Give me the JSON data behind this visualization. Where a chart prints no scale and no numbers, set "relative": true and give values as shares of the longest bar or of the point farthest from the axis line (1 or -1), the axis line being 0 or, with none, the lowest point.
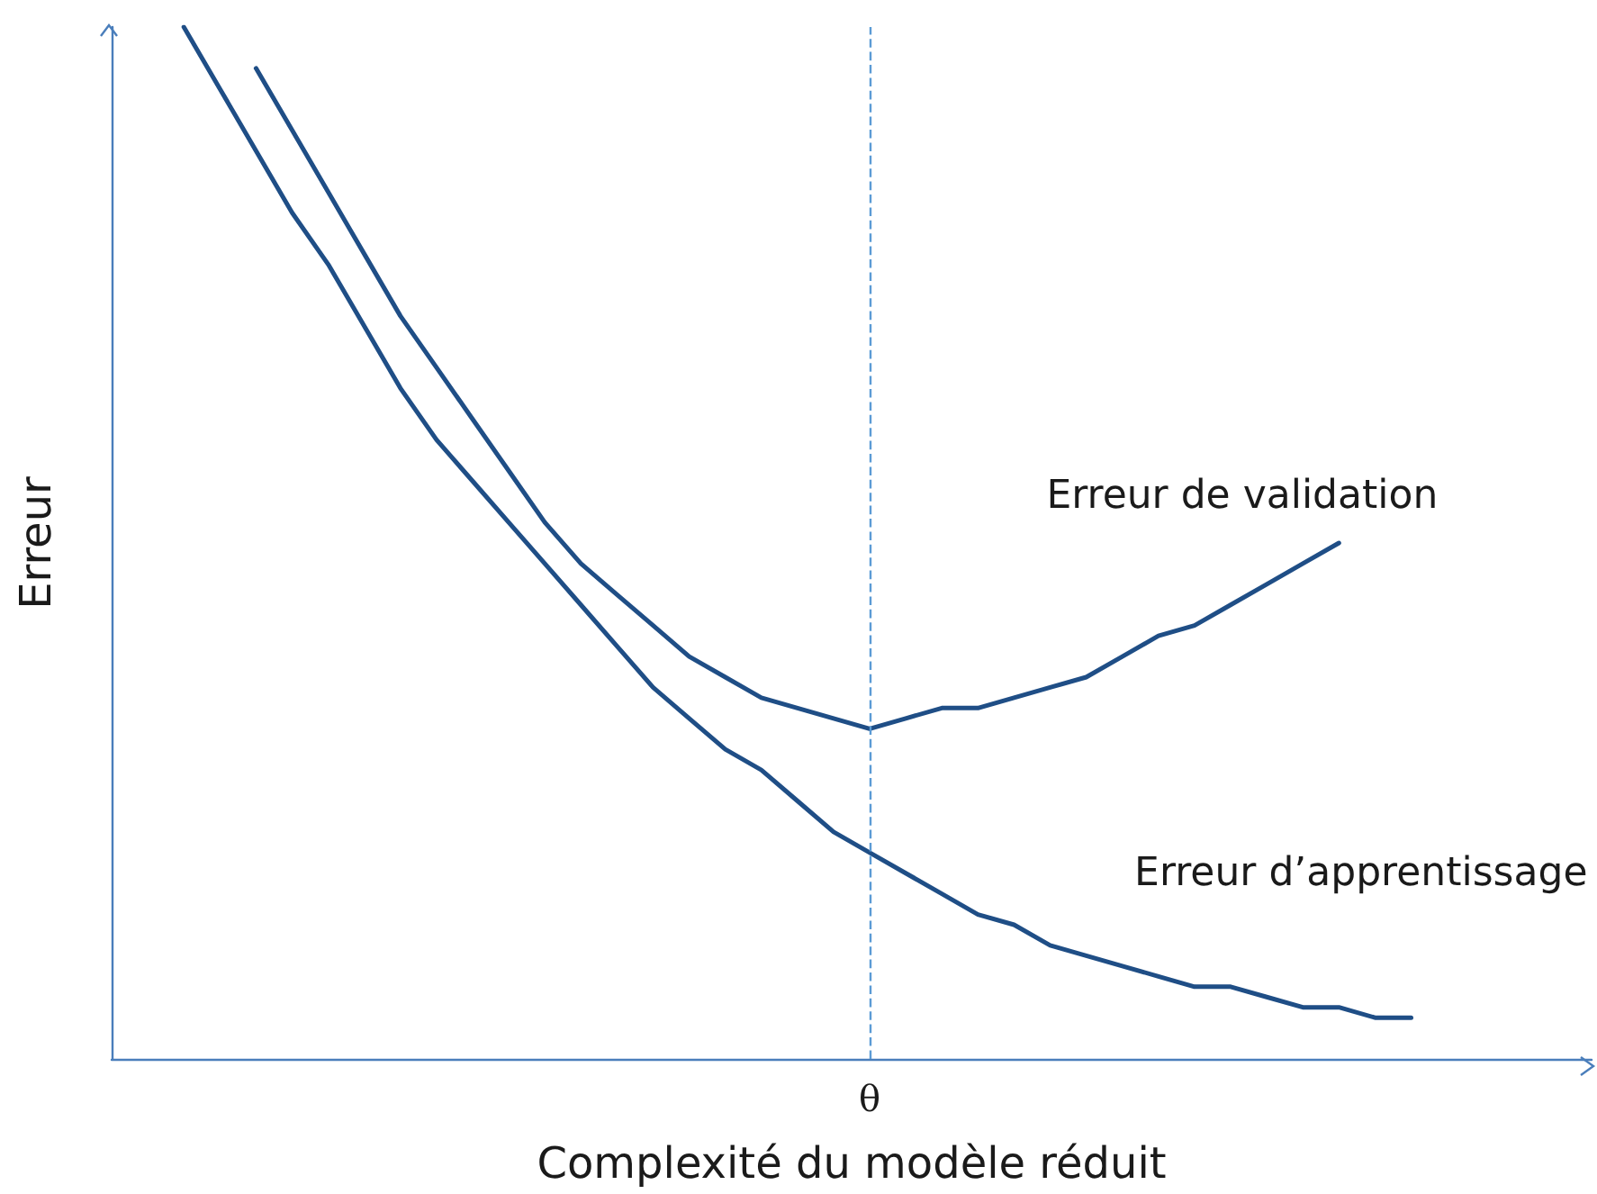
{
  "chart_data": {
    "type": "line",
    "relative": true,
    "xlabel": "Complexité du modèle réduit",
    "ylabel": "Erreur",
    "categories": [
      null,
      null,
      null,
      null,
      null,
      null,
      null,
      null,
      null,
      null,
      null,
      null,
      null,
      null,
      null,
      null,
      null,
      null,
      null,
      null,
      null,
      null,
      null,
      null,
      null,
      null,
      null,
      null,
      null,
      null,
      null,
      null,
      null,
      null,
      null,
      null,
      null,
      null,
      null,
      null,
      null,
      null
    ],
    "series": [
      {
        "name": "Erreur de validation",
        "color": "#1f4e86",
        "values": [
          null,
          null,
          null,
          null,
          0.96,
          0.9,
          0.84,
          0.78,
          0.72,
          0.67,
          0.62,
          0.57,
          0.52,
          0.48,
          0.45,
          0.42,
          0.39,
          0.37,
          0.35,
          0.34,
          0.33,
          0.32,
          0.33,
          0.34,
          0.34,
          0.35,
          0.36,
          0.37,
          0.39,
          0.41,
          0.42,
          0.44,
          0.46,
          0.48,
          0.5,
          null,
          null,
          null,
          null,
          null,
          null,
          null
        ]
      },
      {
        "name": "Erreur d’apprentissage",
        "color": "#1f4e86",
        "values": [
          null,
          null,
          1.0,
          0.94,
          0.88,
          0.82,
          0.77,
          0.71,
          0.65,
          0.6,
          0.56,
          0.52,
          0.48,
          0.44,
          0.4,
          0.36,
          0.33,
          0.3,
          0.28,
          0.25,
          0.22,
          0.2,
          0.18,
          0.16,
          0.14,
          0.13,
          0.11,
          0.1,
          0.09,
          0.08,
          0.07,
          0.07,
          0.06,
          0.05,
          0.05,
          0.04,
          0.04,
          null,
          null,
          null,
          null,
          null
        ]
      }
    ],
    "annotations": [
      "θ"
    ],
    "grid": false,
    "legend": false,
    "marker": "none",
    "line_style": "solid"
  }
}
